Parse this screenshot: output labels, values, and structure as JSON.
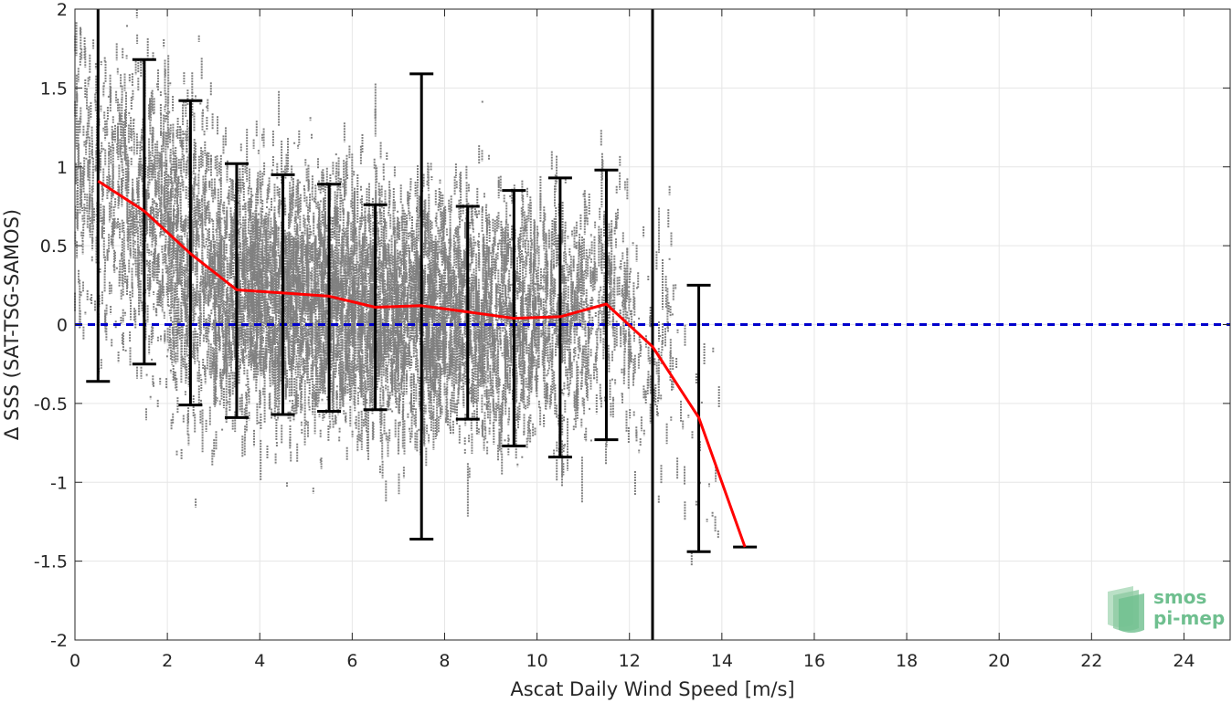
{
  "chart_data": {
    "type": "scatter",
    "xlabel": "Ascat Daily Wind Speed [m/s]",
    "ylabel": "Δ SSS (SAT-TSG-SAMOS)",
    "xlim": [
      0,
      25
    ],
    "ylim": [
      -2,
      2
    ],
    "xticks": [
      0,
      2,
      4,
      6,
      8,
      10,
      12,
      14,
      16,
      18,
      20,
      22,
      24
    ],
    "yticks": [
      -2,
      -1.5,
      -1,
      -0.5,
      0,
      0.5,
      1,
      1.5,
      2
    ],
    "ytick_labels": [
      "-2",
      "-1.5",
      "-1",
      "-0.5",
      "0",
      "0.5",
      "1",
      "1.5",
      "2"
    ],
    "grid": true,
    "scatter_color": "#808080",
    "scatter_note": "dense cloud of individual match-ups, wind speed 0 to ~14 m/s, concentrated between 3 and 11 m/s",
    "mean_line": {
      "color": "#ff0000",
      "x": [
        0.5,
        1.5,
        2.5,
        3.5,
        4.5,
        5.5,
        6.5,
        7.5,
        8.5,
        9.5,
        10.5,
        11.5,
        12.5,
        13.5,
        14.5
      ],
      "y": [
        0.91,
        0.72,
        0.45,
        0.22,
        0.2,
        0.18,
        0.11,
        0.12,
        0.08,
        0.04,
        0.05,
        0.13,
        -0.14,
        -0.59,
        -1.41
      ]
    },
    "error_bars": {
      "color": "#000000",
      "x": [
        0.5,
        1.5,
        2.5,
        3.5,
        4.5,
        5.5,
        6.5,
        7.5,
        8.5,
        9.5,
        10.5,
        11.5,
        13.5,
        14.5
      ],
      "low": [
        -0.36,
        -0.25,
        -0.51,
        -0.59,
        -0.57,
        -0.55,
        -0.54,
        -1.36,
        -0.6,
        -0.77,
        -0.84,
        -0.73,
        -1.44,
        -1.41
      ],
      "high": [
        2.0,
        1.68,
        1.42,
        1.02,
        0.95,
        0.89,
        0.76,
        1.59,
        0.75,
        0.85,
        0.93,
        0.98,
        0.25,
        -1.41
      ]
    },
    "zero_line": {
      "y": 0,
      "color": "#0000cc",
      "style": "dashed"
    },
    "vertical_line": {
      "x": 12.5,
      "color": "#000000"
    }
  },
  "logo": {
    "line1": "smos",
    "line2": "pi-mep",
    "color": "#6fbf8f"
  }
}
